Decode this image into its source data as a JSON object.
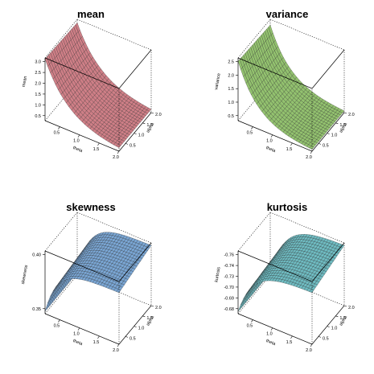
{
  "chart_data": [
    {
      "type": "surface",
      "title": "mean",
      "xlabel": "theta",
      "ylabel": "alpha",
      "zlabel": "mean",
      "x_ticks": [
        "0.5",
        "1.0",
        "1.5",
        "2.0"
      ],
      "y_ticks": [
        "0.5",
        "1.0",
        "1.5",
        "2.0"
      ],
      "z_ticks": [
        "0.5",
        "1.0",
        "1.5",
        "2.0",
        "2.5",
        "3.0"
      ],
      "zlim": [
        0.1,
        3.1
      ],
      "x_range": [
        0.1,
        2.0
      ],
      "y_range": [
        0.1,
        2.0
      ],
      "surface_profile": {
        "shape": "decay",
        "z_at_x_min": 3.05,
        "z_at_x_max": 0.12,
        "rate": 3.0
      },
      "color": "#cf7f87"
    },
    {
      "type": "surface",
      "title": "variance",
      "xlabel": "theta",
      "ylabel": "alpha",
      "zlabel": "variance",
      "x_ticks": [
        "0.5",
        "1.0",
        "1.5",
        "2.0"
      ],
      "y_ticks": [
        "0.5",
        "1.0",
        "1.5",
        "2.0"
      ],
      "z_ticks": [
        "0.5",
        "1.0",
        "1.5",
        "2.0",
        "2.5"
      ],
      "zlim": [
        0.05,
        2.9
      ],
      "x_range": [
        0.1,
        2.0
      ],
      "y_range": [
        0.1,
        2.0
      ],
      "surface_profile": {
        "shape": "decay",
        "z_at_x_min": 2.75,
        "z_at_x_max": 0.06,
        "rate": 3.6
      },
      "color": "#93c26f"
    },
    {
      "type": "surface",
      "title": "skewness",
      "xlabel": "theta",
      "ylabel": "alpha",
      "zlabel": "skewness",
      "x_ticks": [
        "0.5",
        "1.0",
        "1.5",
        "2.0"
      ],
      "y_ticks": [
        "0.5",
        "1.0",
        "1.5",
        "2.0"
      ],
      "z_ticks": [
        "0.35",
        "0.40"
      ],
      "zlim": [
        0.32,
        0.455
      ],
      "x_range": [
        0.1,
        2.0
      ],
      "y_range": [
        0.1,
        2.0
      ],
      "surface_profile": {
        "shape": "rise",
        "z_at_x_min": 0.325,
        "z_at_x_max": 0.45,
        "rate": 6.0
      },
      "color": "#7aa6d4"
    },
    {
      "type": "surface",
      "title": "kurtosis",
      "xlabel": "theta",
      "ylabel": "alpha",
      "zlabel": "kurtosis",
      "x_ticks": [
        "0.5",
        "1.0",
        "1.5",
        "2.0"
      ],
      "y_ticks": [
        "0.5",
        "1.0",
        "1.5",
        "2.0"
      ],
      "z_ticks": [
        "-0.68",
        "-0.69",
        "-0.70",
        "-0.73",
        "-0.74",
        "-0.76"
      ],
      "zlim": [
        -0.765,
        -0.672
      ],
      "x_range": [
        0.1,
        2.0
      ],
      "y_range": [
        0.1,
        2.0
      ],
      "surface_profile": {
        "shape": "rise",
        "z_at_x_min": -0.762,
        "z_at_x_max": -0.675,
        "rate": 5.0
      },
      "color": "#6fbcc2"
    }
  ]
}
